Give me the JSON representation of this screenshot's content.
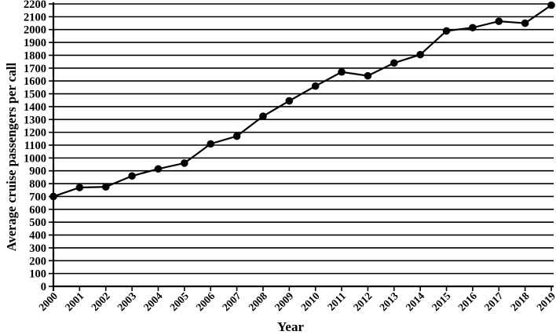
{
  "figure": {
    "background": "#ffffff",
    "foreground": "#000000"
  },
  "chart_data": {
    "type": "line",
    "title": "",
    "xlabel": "Year",
    "ylabel": "Average cruise passengers per call",
    "categories": [
      "2000",
      "2001",
      "2002",
      "2003",
      "2004",
      "2005",
      "2006",
      "2007",
      "2008",
      "2009",
      "2010",
      "2011",
      "2012",
      "2013",
      "2014",
      "2015",
      "2016",
      "2017",
      "2018",
      "2019"
    ],
    "series": [
      {
        "name": "Average cruise passengers per call",
        "values": [
          700,
          770,
          775,
          860,
          915,
          960,
          1110,
          1170,
          1325,
          1445,
          1560,
          1670,
          1640,
          1740,
          1805,
          1990,
          2015,
          2065,
          2050,
          2190
        ]
      }
    ],
    "ylim": [
      0,
      2200
    ],
    "ytick_step": 100,
    "yticks": [
      0,
      100,
      200,
      300,
      400,
      500,
      600,
      700,
      800,
      900,
      1000,
      1100,
      1200,
      1300,
      1400,
      1500,
      1600,
      1700,
      1800,
      1900,
      2000,
      2100,
      2200
    ],
    "grid": "horizontal",
    "legend": "none",
    "marker": "filled-circle",
    "x_label_rotation_deg": -45,
    "line_color": "#000000",
    "marker_color": "#000000"
  }
}
